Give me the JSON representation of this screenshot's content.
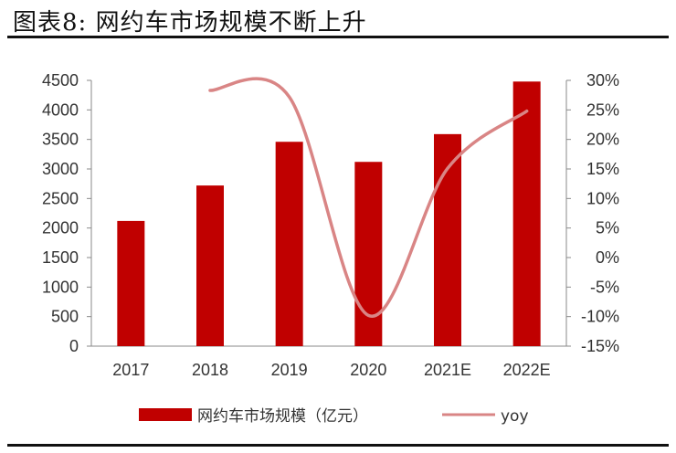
{
  "figure_title": "图表8:  网约车市场规模不断上升",
  "chart_data": {
    "type": "bar",
    "title": "",
    "xlabel": "",
    "ylabel": "",
    "categories": [
      "2017",
      "2018",
      "2019",
      "2020",
      "2021E",
      "2022E"
    ],
    "series": [
      {
        "name": "网约车市场规模（亿元）",
        "type": "bar",
        "axis": "left",
        "values": [
          2120,
          2720,
          3460,
          3120,
          3590,
          4480
        ],
        "color": "#c00000"
      },
      {
        "name": "yoy",
        "type": "line",
        "axis": "right",
        "values": [
          null,
          28.3,
          27.2,
          -9.8,
          15.1,
          24.8
        ],
        "color": "#d98585"
      }
    ],
    "ylim": [
      0,
      4500
    ],
    "y_ticks": [
      "0",
      "500",
      "1000",
      "1500",
      "2000",
      "2500",
      "3000",
      "3500",
      "4000",
      "4500"
    ],
    "y2lim": [
      -15,
      30
    ],
    "y2_ticks": [
      "-15%",
      "-10%",
      "-5%",
      "0%",
      "5%",
      "10%",
      "15%",
      "20%",
      "25%",
      "30%"
    ],
    "grid": false,
    "legend_position": "bottom"
  }
}
